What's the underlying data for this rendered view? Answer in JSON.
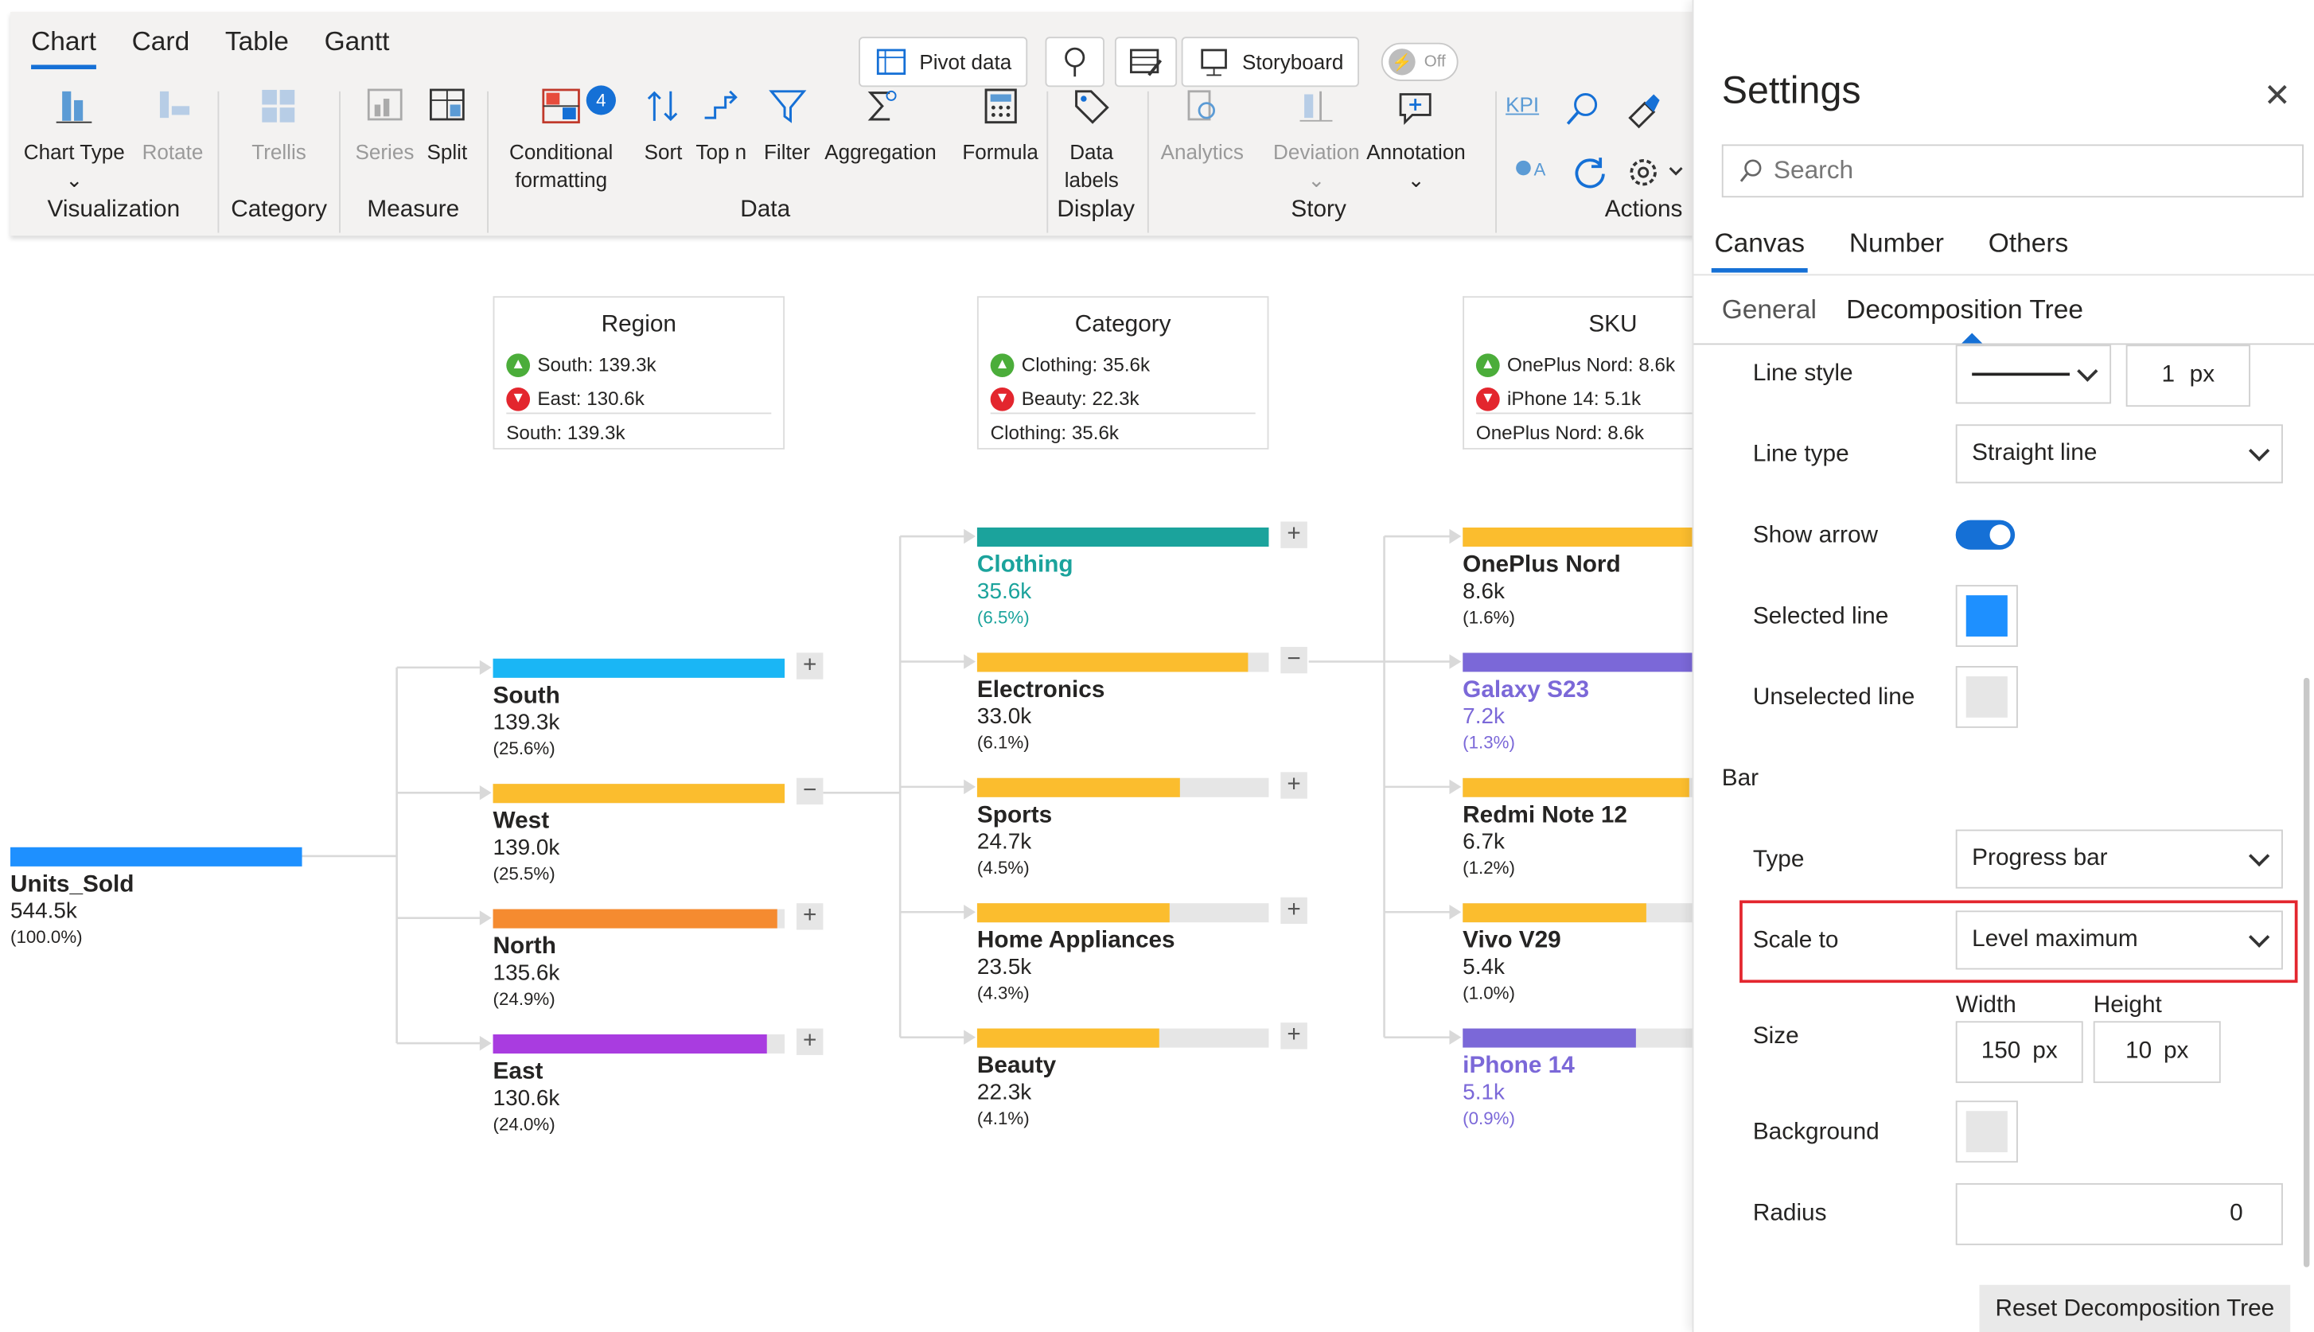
{
  "ribbon": {
    "tabs": [
      "Chart",
      "Card",
      "Table",
      "Gantt"
    ],
    "top_buttons": {
      "pivot": "Pivot data",
      "storyboard": "Storyboard",
      "toggle": "Off"
    },
    "tools": {
      "chart_type": "Chart Type",
      "rotate": "Rotate",
      "trellis": "Trellis",
      "series": "Series",
      "split": "Split",
      "conditional": "Conditional",
      "formatting": "formatting",
      "sort": "Sort",
      "topn": "Top n",
      "filter": "Filter",
      "aggregation": "Aggregation",
      "formula": "Formula",
      "data": "Data",
      "labels": "labels",
      "analytics": "Analytics",
      "deviation": "Deviation",
      "annotation": "Annotation",
      "kpi": "KPI",
      "conditional_badge": "4"
    },
    "groups": [
      "Visualization",
      "Category",
      "Measure",
      "Data",
      "Display",
      "Story",
      "Actions"
    ]
  },
  "headers": [
    {
      "title": "Region",
      "up": "South: 139.3k",
      "down": "East: 130.6k",
      "foot": "South: 139.3k"
    },
    {
      "title": "Category",
      "up": "Clothing: 35.6k",
      "down": "Beauty: 22.3k",
      "foot": "Clothing: 35.6k"
    },
    {
      "title": "SKU",
      "up": "OnePlus Nord: 8.6k",
      "down": "iPhone 14: 5.1k",
      "foot": "OnePlus Nord: 8.6k"
    }
  ],
  "root": {
    "name": "Units_Sold",
    "value": "544.5k",
    "pct": "(100.0%)",
    "color": "#1e90ff",
    "fill": 1.0
  },
  "regions": [
    {
      "name": "South",
      "value": "139.3k",
      "pct": "(25.6%)",
      "color": "#1ab6f5",
      "fill": 1.0,
      "btn": "+"
    },
    {
      "name": "West",
      "value": "139.0k",
      "pct": "(25.5%)",
      "color": "#fbbd2e",
      "fill": 0.998,
      "btn": "−"
    },
    {
      "name": "North",
      "value": "135.6k",
      "pct": "(24.9%)",
      "color": "#f58b30",
      "fill": 0.973,
      "btn": "+"
    },
    {
      "name": "East",
      "value": "130.6k",
      "pct": "(24.0%)",
      "color": "#a93ce0",
      "fill": 0.938,
      "btn": "+"
    }
  ],
  "categories": [
    {
      "name": "Clothing",
      "value": "35.6k",
      "pct": "(6.5%)",
      "color": "#1ba39c",
      "fill": 1.0,
      "btn": "+",
      "highlight": true
    },
    {
      "name": "Electronics",
      "value": "33.0k",
      "pct": "(6.1%)",
      "color": "#fbbd2e",
      "fill": 0.927,
      "btn": "−"
    },
    {
      "name": "Sports",
      "value": "24.7k",
      "pct": "(4.5%)",
      "color": "#fbbd2e",
      "fill": 0.694,
      "btn": "+"
    },
    {
      "name": "Home Appliances",
      "value": "23.5k",
      "pct": "(4.3%)",
      "color": "#fbbd2e",
      "fill": 0.66,
      "btn": "+"
    },
    {
      "name": "Beauty",
      "value": "22.3k",
      "pct": "(4.1%)",
      "color": "#fbbd2e",
      "fill": 0.626,
      "btn": "+"
    }
  ],
  "skus": [
    {
      "name": "OnePlus Nord",
      "value": "8.6k",
      "pct": "(1.6%)",
      "color": "#fbbd2e",
      "fill": 1.0
    },
    {
      "name": "Galaxy S23",
      "value": "7.2k",
      "pct": "(1.3%)",
      "color": "#7b68d8",
      "fill": 0.837,
      "highlight": true
    },
    {
      "name": "Redmi Note 12",
      "value": "6.7k",
      "pct": "(1.2%)",
      "color": "#fbbd2e",
      "fill": 0.779
    },
    {
      "name": "Vivo V29",
      "value": "5.4k",
      "pct": "(1.0%)",
      "color": "#fbbd2e",
      "fill": 0.628
    },
    {
      "name": "iPhone 14",
      "value": "5.1k",
      "pct": "(0.9%)",
      "color": "#7b68d8",
      "fill": 0.593,
      "highlight": true
    }
  ],
  "settings": {
    "title": "Settings",
    "search_placeholder": "Search",
    "tabs": [
      "Canvas",
      "Number",
      "Others"
    ],
    "subtabs": [
      "General",
      "Decomposition Tree"
    ],
    "line_style_label": "Line style",
    "line_width": "1",
    "px": "px",
    "line_type_label": "Line type",
    "line_type_value": "Straight line",
    "show_arrow_label": "Show arrow",
    "selected_line_label": "Selected line",
    "selected_line_color": "#1e90ff",
    "unselected_line_label": "Unselected line",
    "unselected_line_color": "#e6e6e6",
    "bar_section": "Bar",
    "type_label": "Type",
    "type_value": "Progress bar",
    "scale_label": "Scale to",
    "scale_value": "Level maximum",
    "width_label": "Width",
    "height_label": "Height",
    "size_label": "Size",
    "width_value": "150",
    "height_value": "10",
    "background_label": "Background",
    "background_color": "#e6e6e6",
    "radius_label": "Radius",
    "radius_value": "0",
    "reset_label": "Reset Decomposition Tree"
  }
}
